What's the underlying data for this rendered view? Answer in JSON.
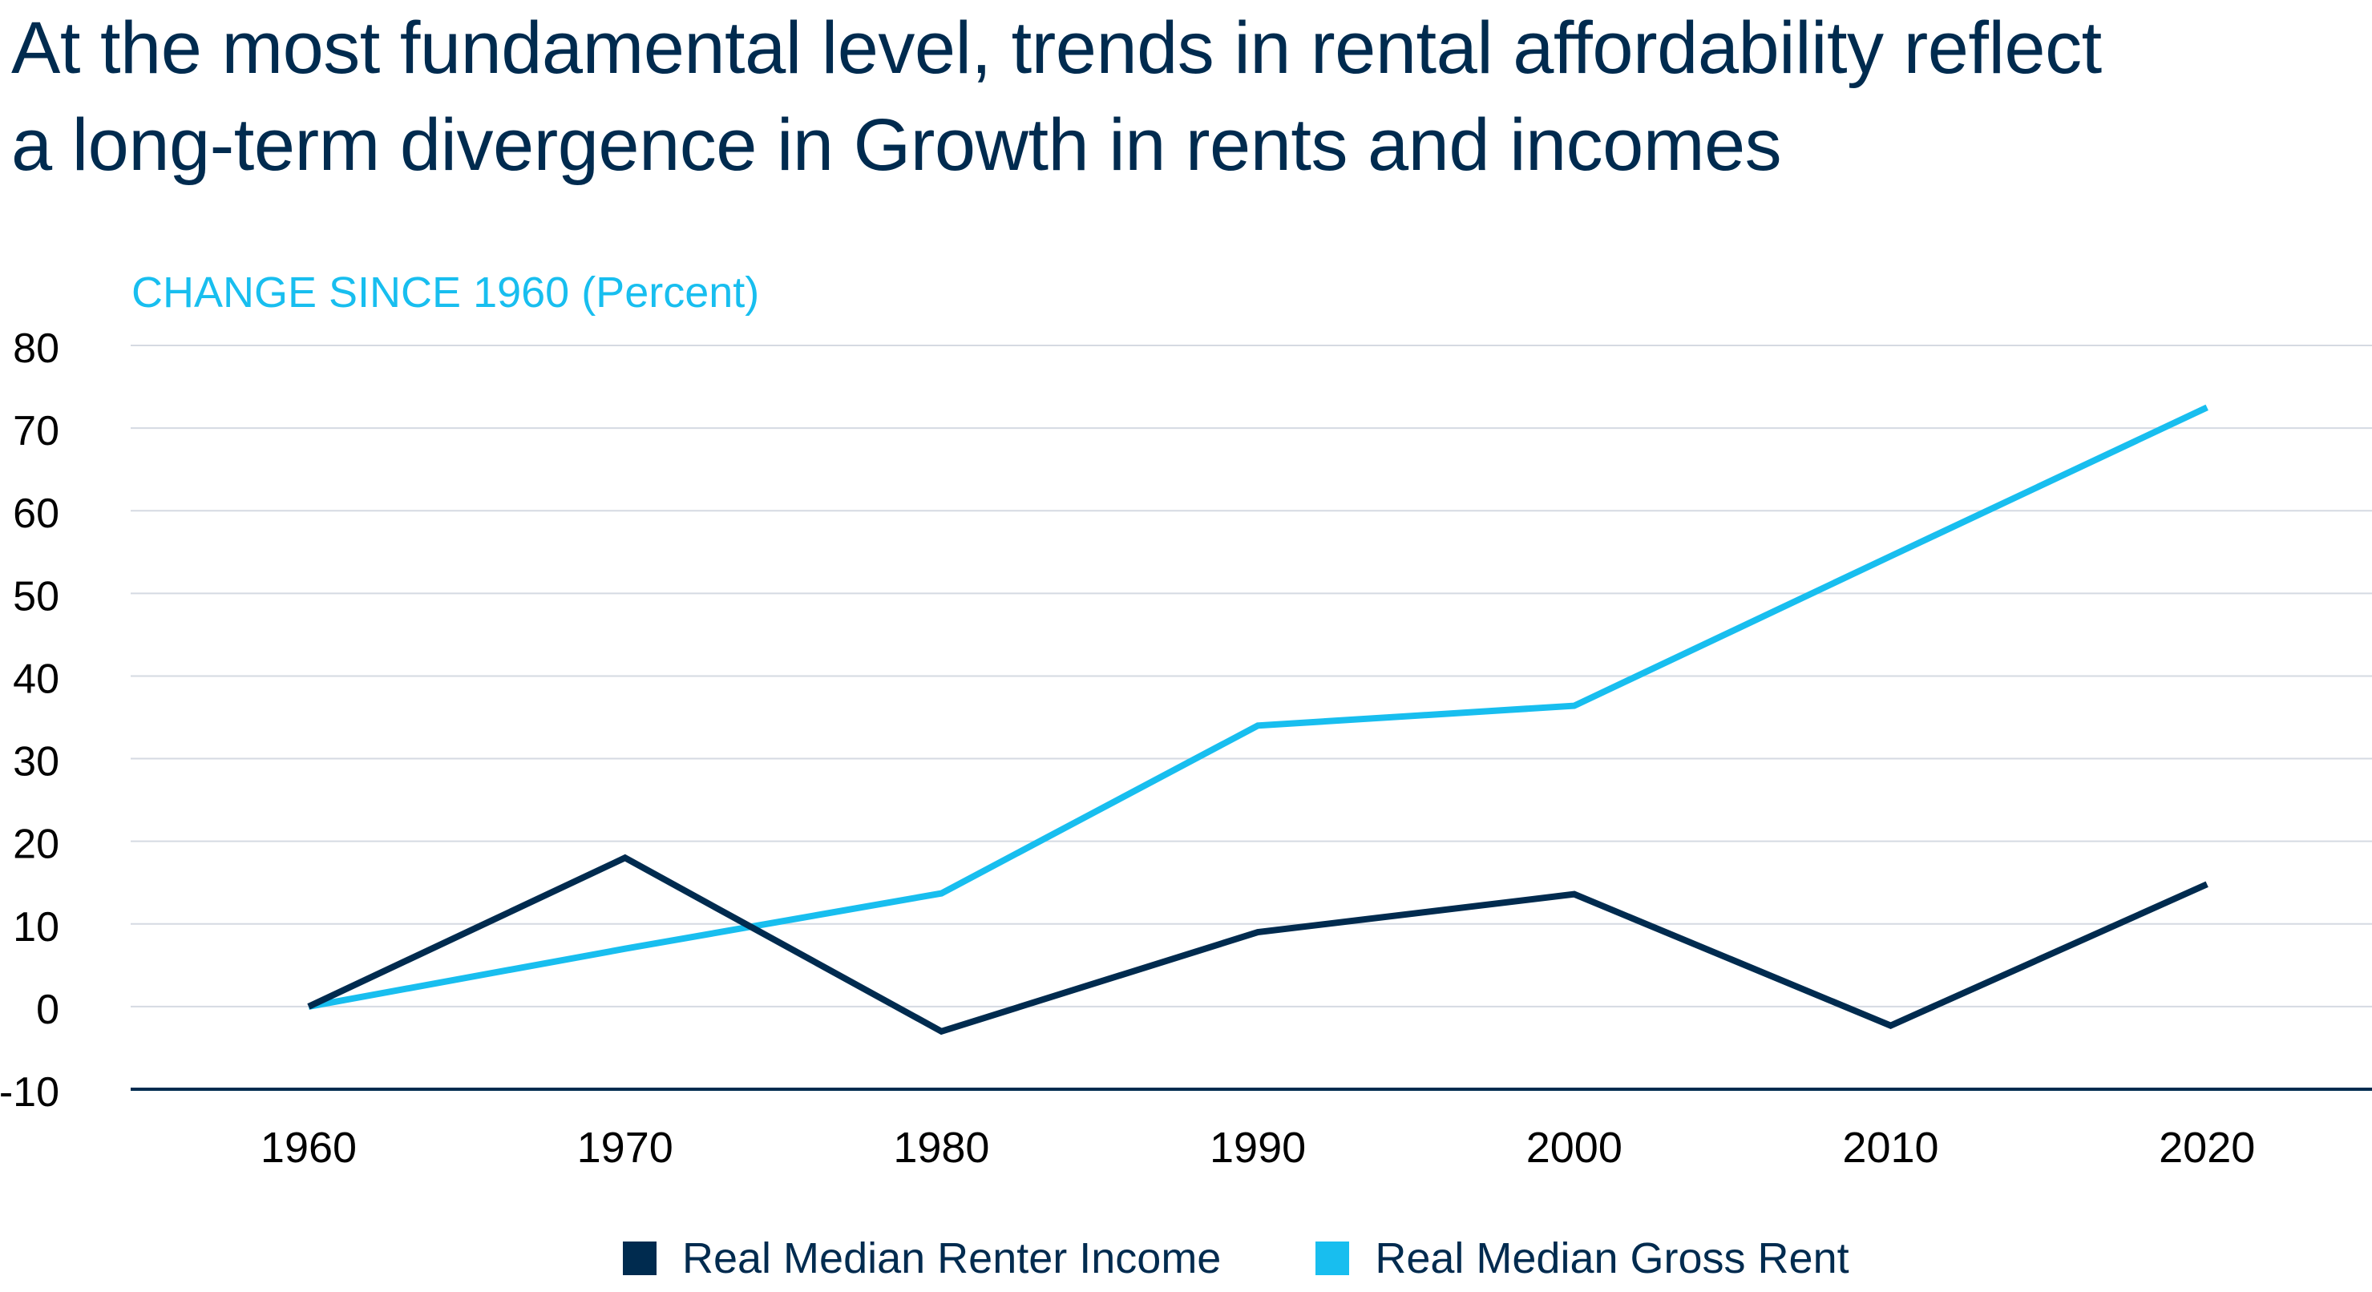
{
  "title": {
    "line1": "At the most fundamental level, trends in rental affordability reflect",
    "line2": "a long-term divergence in Growth in rents and incomes"
  },
  "colors": {
    "title": "#002B4F",
    "income": "#002B4F",
    "rent": "#18BEEF",
    "grid": "#D5DAE2",
    "axis": "#002B4F",
    "ylabel": "#18BEEF"
  },
  "chart_data": {
    "type": "line",
    "title": "At the most fundamental level, trends in rental affordability reflect a long-term divergence in Growth in rents and incomes",
    "ylabel": "CHANGE SINCE 1960 (Percent)",
    "xlabel": "",
    "x": [
      1960,
      1970,
      1980,
      1990,
      2000,
      2010,
      2020
    ],
    "x_tick_labels": [
      "1960",
      "1970",
      "1980",
      "1990",
      "2000",
      "2010",
      "2020"
    ],
    "y_ticks": [
      80,
      70,
      60,
      50,
      40,
      30,
      20,
      10,
      0,
      -10
    ],
    "y_tick_labels": [
      "80",
      "70",
      "60",
      "50",
      "40",
      "30",
      "20",
      "10",
      "0",
      "-10"
    ],
    "ylim": [
      -10,
      80
    ],
    "xlim": [
      1955,
      2030
    ],
    "grid": true,
    "legend_position": "bottom-center",
    "series": [
      {
        "name": "Real Median Renter Income",
        "color": "#002B4F",
        "values": [
          0,
          18,
          -3,
          9,
          13.6,
          -2.3,
          14.8
        ]
      },
      {
        "name": "Real Median Gross Rent",
        "color": "#18BEEF",
        "values": [
          0,
          7,
          13.7,
          34,
          36.4,
          54.5,
          72.5
        ]
      }
    ]
  }
}
